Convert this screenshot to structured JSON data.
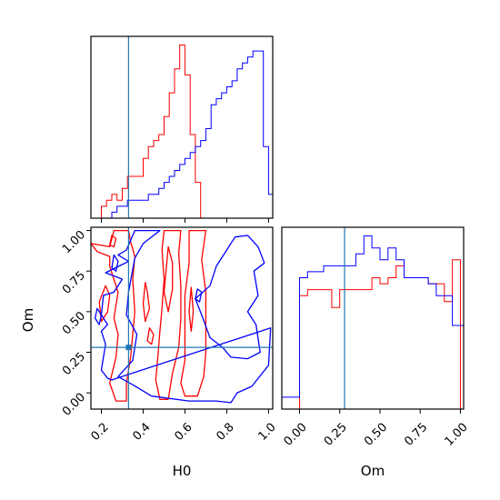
{
  "chart_data": {
    "type": "corner",
    "parameters": [
      "H0",
      "Om"
    ],
    "truth": {
      "H0": 0.33,
      "Om": 0.28
    },
    "colors": {
      "red": "#ff0000",
      "blue": "#0000ff",
      "truth": "#1f77b4"
    },
    "marginals": [
      {
        "param": "H0",
        "xlim": [
          0.15,
          1.02
        ],
        "edges": [
          0.15,
          0.175,
          0.2,
          0.225,
          0.25,
          0.275,
          0.3,
          0.325,
          0.35,
          0.375,
          0.4,
          0.425,
          0.45,
          0.475,
          0.5,
          0.525,
          0.55,
          0.575,
          0.6,
          0.625,
          0.65,
          0.675,
          0.7,
          0.725,
          0.75,
          0.775,
          0.8,
          0.825,
          0.85,
          0.875,
          0.9,
          0.925,
          0.95,
          0.975,
          1.0,
          1.02
        ],
        "series": [
          {
            "name": "red",
            "counts": [
              0,
              0,
              2,
              3,
              4,
              3,
              5,
              7,
              7,
              7,
              10,
              12,
              13,
              14,
              17,
              21,
              25,
              29,
              24,
              14,
              6,
              0,
              0,
              0,
              0,
              0,
              0,
              0,
              0,
              0,
              0,
              0,
              0,
              0,
              0
            ]
          },
          {
            "name": "blue",
            "counts": [
              0,
              0,
              0,
              0,
              1,
              2,
              2,
              3,
              3,
              3,
              3,
              4,
              4,
              5,
              6,
              7,
              8,
              9,
              10,
              11,
              12,
              13,
              15,
              19,
              20,
              21,
              22,
              23,
              25,
              26,
              27,
              28,
              28,
              12,
              4
            ]
          }
        ]
      },
      {
        "param": "Om",
        "xlim": [
          -0.11,
          1.02
        ],
        "xticks": [
          "0.00",
          "0.25",
          "0.50",
          "0.75",
          "1.00"
        ],
        "edges": [
          -0.11,
          -0.05,
          0.0,
          0.05,
          0.1,
          0.15,
          0.2,
          0.25,
          0.3,
          0.35,
          0.4,
          0.45,
          0.5,
          0.55,
          0.6,
          0.65,
          0.7,
          0.75,
          0.8,
          0.85,
          0.9,
          0.95,
          1.0,
          1.02
        ],
        "series": [
          {
            "name": "red",
            "counts": [
              0,
              0,
              19,
              20,
              20,
              20,
              17,
              20,
              20,
              20,
              20,
              22,
              21,
              22,
              24,
              22,
              22,
              22,
              21,
              21,
              18,
              25,
              0
            ]
          },
          {
            "name": "blue",
            "counts": [
              2,
              2,
              22,
              23,
              23,
              24,
              24,
              24,
              24,
              26,
              29,
              27,
              25,
              27,
              25,
              22,
              22,
              22,
              21,
              19,
              19,
              14,
              14
            ]
          }
        ]
      }
    ],
    "joint": {
      "x": "H0",
      "y": "Om",
      "xlim": [
        0.15,
        1.02
      ],
      "ylim": [
        -0.1,
        1.02
      ],
      "xticks": [
        "0.2",
        "0.4",
        "0.6",
        "0.8",
        "1.0"
      ],
      "yticks": [
        "0.00",
        "0.25",
        "0.50",
        "0.75",
        "1.00"
      ],
      "contours": [
        {
          "series": "red",
          "level": "outer",
          "points": [
            [
              0.15,
              0.92
            ],
            [
              0.18,
              0.87
            ],
            [
              0.24,
              0.84
            ],
            [
              0.24,
              0.78
            ],
            [
              0.28,
              0.62
            ],
            [
              0.26,
              0.46
            ],
            [
              0.28,
              0.36
            ],
            [
              0.27,
              0.22
            ],
            [
              0.24,
              0.06
            ],
            [
              0.27,
              -0.05
            ],
            [
              0.32,
              -0.05
            ],
            [
              0.32,
              0.06
            ],
            [
              0.34,
              0.22
            ],
            [
              0.36,
              0.5
            ],
            [
              0.35,
              0.7
            ],
            [
              0.36,
              0.84
            ],
            [
              0.34,
              0.93
            ],
            [
              0.33,
              1.0
            ],
            [
              0.26,
              1.0
            ],
            [
              0.24,
              0.9
            ]
          ]
        },
        {
          "series": "red",
          "level": "outer",
          "points": [
            [
              0.5,
              1.0
            ],
            [
              0.49,
              0.88
            ],
            [
              0.5,
              0.7
            ],
            [
              0.49,
              0.52
            ],
            [
              0.48,
              0.38
            ],
            [
              0.47,
              0.22
            ],
            [
              0.46,
              0.08
            ],
            [
              0.48,
              -0.04
            ],
            [
              0.52,
              -0.04
            ],
            [
              0.54,
              0.12
            ],
            [
              0.57,
              0.28
            ],
            [
              0.58,
              0.46
            ],
            [
              0.58,
              0.66
            ],
            [
              0.57,
              0.86
            ],
            [
              0.58,
              1.0
            ]
          ]
        },
        {
          "series": "red",
          "level": "outer",
          "points": [
            [
              0.62,
              1.0
            ],
            [
              0.62,
              0.8
            ],
            [
              0.6,
              0.6
            ],
            [
              0.6,
              0.4
            ],
            [
              0.6,
              0.2
            ],
            [
              0.58,
              0.06
            ],
            [
              0.6,
              -0.02
            ],
            [
              0.66,
              -0.02
            ],
            [
              0.69,
              0.1
            ],
            [
              0.7,
              0.25
            ],
            [
              0.7,
              0.45
            ],
            [
              0.7,
              0.62
            ],
            [
              0.68,
              0.82
            ],
            [
              0.7,
              1.0
            ]
          ]
        },
        {
          "series": "red",
          "level": "inner",
          "points": [
            [
              0.22,
              0.66
            ],
            [
              0.24,
              0.6
            ],
            [
              0.23,
              0.5
            ],
            [
              0.2,
              0.44
            ],
            [
              0.19,
              0.56
            ]
          ]
        },
        {
          "series": "red",
          "level": "inner",
          "points": [
            [
              0.52,
              0.9
            ],
            [
              0.51,
              0.76
            ],
            [
              0.5,
              0.62
            ],
            [
              0.52,
              0.5
            ],
            [
              0.54,
              0.64
            ],
            [
              0.54,
              0.8
            ]
          ]
        },
        {
          "series": "red",
          "level": "inner",
          "points": [
            [
              0.41,
              0.68
            ],
            [
              0.4,
              0.55
            ],
            [
              0.41,
              0.44
            ],
            [
              0.43,
              0.52
            ],
            [
              0.42,
              0.62
            ]
          ]
        },
        {
          "series": "red",
          "level": "inner",
          "points": [
            [
              0.63,
              0.65
            ],
            [
              0.62,
              0.5
            ],
            [
              0.63,
              0.38
            ],
            [
              0.64,
              0.5
            ]
          ]
        },
        {
          "series": "red",
          "level": "inner",
          "points": [
            [
              0.43,
              0.4
            ],
            [
              0.42,
              0.32
            ],
            [
              0.44,
              0.3
            ],
            [
              0.45,
              0.36
            ]
          ]
        },
        {
          "series": "red",
          "level": "inner",
          "points": [
            [
              0.25,
              0.97
            ],
            [
              0.24,
              0.91
            ],
            [
              0.26,
              0.9
            ],
            [
              0.27,
              0.95
            ]
          ]
        },
        {
          "series": "blue",
          "level": "outer",
          "points": [
            [
              1.01,
              0.4
            ],
            [
              1.0,
              0.17
            ],
            [
              0.92,
              0.04
            ],
            [
              0.85,
              0.0
            ],
            [
              0.82,
              -0.06
            ],
            [
              0.75,
              -0.05
            ],
            [
              0.62,
              -0.05
            ],
            [
              0.44,
              -0.02
            ],
            [
              0.35,
              0.05
            ],
            [
              0.28,
              0.1
            ],
            [
              0.35,
              0.2
            ],
            [
              0.37,
              0.36
            ],
            [
              0.32,
              0.48
            ],
            [
              0.33,
              0.62
            ],
            [
              0.36,
              0.83
            ],
            [
              0.4,
              0.92
            ],
            [
              0.48,
              1.0
            ],
            [
              0.36,
              1.0
            ],
            [
              0.32,
              0.88
            ],
            [
              0.28,
              0.85
            ],
            [
              0.33,
              0.81
            ],
            [
              0.22,
              0.74
            ],
            [
              0.3,
              0.7
            ],
            [
              0.26,
              0.62
            ],
            [
              0.21,
              0.6
            ],
            [
              0.2,
              0.48
            ],
            [
              0.23,
              0.42
            ],
            [
              0.2,
              0.38
            ],
            [
              0.22,
              0.3
            ],
            [
              0.2,
              0.14
            ],
            [
              0.23,
              0.09
            ],
            [
              0.25,
              0.08
            ]
          ]
        },
        {
          "series": "blue",
          "level": "inner",
          "points": [
            [
              0.82,
              0.22
            ],
            [
              0.78,
              0.28
            ],
            [
              0.72,
              0.34
            ],
            [
              0.68,
              0.48
            ],
            [
              0.65,
              0.58
            ],
            [
              0.72,
              0.66
            ],
            [
              0.75,
              0.78
            ],
            [
              0.8,
              0.88
            ],
            [
              0.84,
              0.96
            ],
            [
              0.9,
              0.97
            ],
            [
              0.95,
              0.9
            ],
            [
              0.98,
              0.8
            ],
            [
              0.93,
              0.75
            ],
            [
              0.95,
              0.6
            ],
            [
              0.9,
              0.5
            ],
            [
              0.94,
              0.42
            ],
            [
              0.96,
              0.25
            ],
            [
              0.9,
              0.21
            ]
          ]
        },
        {
          "series": "blue",
          "level": "inner",
          "points": [
            [
              0.66,
              0.64
            ],
            [
              0.65,
              0.58
            ],
            [
              0.67,
              0.56
            ],
            [
              0.68,
              0.62
            ]
          ]
        },
        {
          "series": "blue",
          "level": "inner",
          "points": [
            [
              0.18,
              0.52
            ],
            [
              0.17,
              0.46
            ],
            [
              0.19,
              0.42
            ],
            [
              0.2,
              0.48
            ]
          ]
        },
        {
          "series": "blue",
          "level": "inner",
          "points": [
            [
              0.26,
              0.85
            ],
            [
              0.25,
              0.77
            ],
            [
              0.27,
              0.75
            ],
            [
              0.28,
              0.81
            ]
          ]
        }
      ]
    },
    "axis_labels": {
      "joint_x": "H0",
      "joint_y": "Om",
      "marginal_x": "Om"
    }
  }
}
